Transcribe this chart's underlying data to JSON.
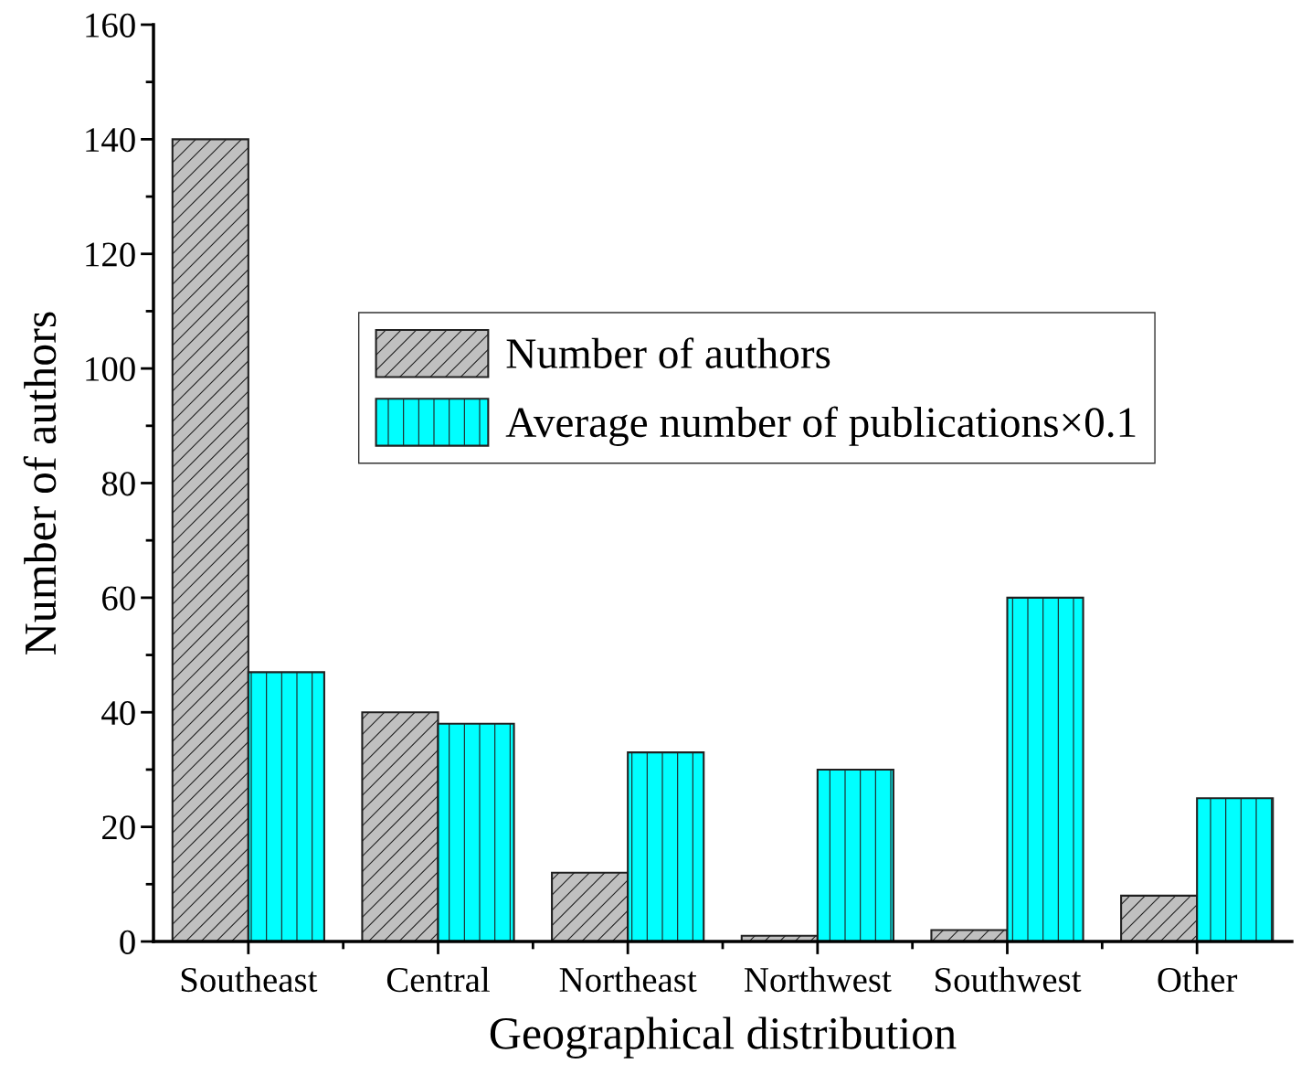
{
  "chart_data": {
    "type": "bar",
    "xlabel": "Geographical distribution",
    "ylabel": "Number of authors",
    "categories": [
      "Southeast",
      "Central",
      "Northeast",
      "Northwest",
      "Southwest",
      "Other"
    ],
    "series": [
      {
        "name": "Number of authors",
        "color": "#c0c0c0",
        "values": [
          140,
          40,
          12,
          1,
          2,
          8
        ]
      },
      {
        "name": "Average number of publications×0.1",
        "color": "#00ffff",
        "values": [
          47,
          38,
          33,
          30,
          60,
          25
        ]
      }
    ],
    "ylim": [
      0,
      160
    ],
    "yticks": [
      0,
      20,
      40,
      60,
      80,
      100,
      120,
      140,
      160
    ],
    "grid": false,
    "legend": "top"
  }
}
